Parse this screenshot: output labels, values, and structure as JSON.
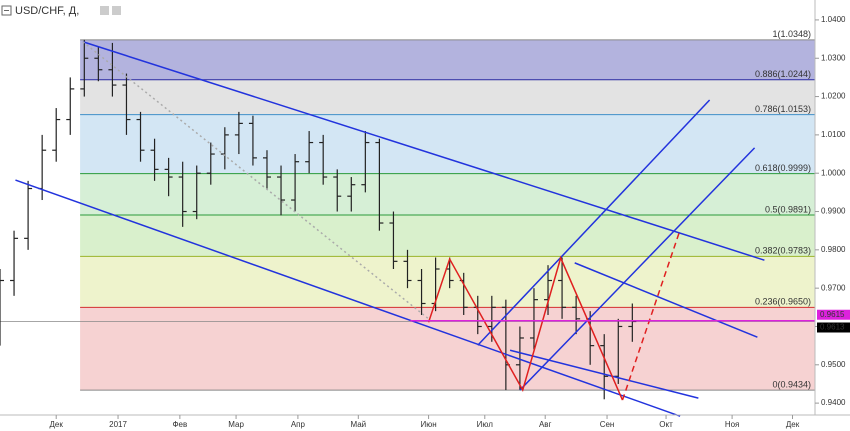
{
  "chart_data": {
    "type": "ohlc",
    "title": "USD/CHF, Д,",
    "xlim": [
      -4,
      54
    ],
    "ylim": [
      0.9369,
      1.0452
    ],
    "xticks": [
      {
        "value": 0,
        "label": "Дек"
      },
      {
        "value": 4.4,
        "label": "2017"
      },
      {
        "value": 8.8,
        "label": "Фев"
      },
      {
        "value": 12.8,
        "label": "Мар"
      },
      {
        "value": 17.2,
        "label": "Апр"
      },
      {
        "value": 21.5,
        "label": "Май"
      },
      {
        "value": 26.5,
        "label": "Июн"
      },
      {
        "value": 30.5,
        "label": "Июл"
      },
      {
        "value": 34.8,
        "label": "Авг"
      },
      {
        "value": 39.2,
        "label": "Сен"
      },
      {
        "value": 43.4,
        "label": "Окт"
      },
      {
        "value": 48.1,
        "label": "Ноя"
      },
      {
        "value": 52.4,
        "label": "Дек"
      }
    ],
    "yticks": [
      {
        "value": 1.04,
        "label": "1.0400"
      },
      {
        "value": 1.03,
        "label": "1.0300"
      },
      {
        "value": 1.02,
        "label": "1.0200"
      },
      {
        "value": 1.01,
        "label": "1.0100"
      },
      {
        "value": 1.0,
        "label": "1.0000"
      },
      {
        "value": 0.99,
        "label": "0.9900"
      },
      {
        "value": 0.98,
        "label": "0.9800"
      },
      {
        "value": 0.97,
        "label": "0.9700"
      },
      {
        "value": 0.96,
        "label": "0.9600"
      },
      {
        "value": 0.95,
        "label": "0.9500"
      },
      {
        "value": 0.94,
        "label": "0.9400"
      }
    ],
    "bars": {
      "color": "#222",
      "x": [
        -4,
        -3,
        -2,
        -1,
        0,
        1,
        2,
        3,
        4,
        5,
        6,
        7,
        8,
        9,
        10,
        11,
        12,
        13,
        14,
        15,
        16,
        17,
        18,
        19,
        20,
        21,
        22,
        23,
        24,
        25,
        26,
        27,
        28,
        29,
        30,
        31,
        32,
        33,
        34,
        35,
        36,
        37,
        38,
        39,
        40,
        41
      ],
      "open": [
        0.968,
        0.972,
        0.983,
        0.996,
        1.006,
        1.014,
        1.022,
        1.03,
        1.027,
        1.023,
        1.014,
        1.006,
        1.001,
        0.999,
        0.99,
        1.0,
        1.005,
        1.01,
        1.013,
        1.004,
        0.999,
        0.993,
        1.003,
        1.008,
        0.999,
        0.994,
        0.997,
        1.008,
        0.987,
        0.977,
        0.972,
        0.966,
        0.975,
        0.972,
        0.965,
        0.96,
        0.965,
        0.95,
        0.957,
        0.967,
        0.972,
        0.965,
        0.962,
        0.955,
        0.947,
        0.96
      ],
      "high": [
        0.975,
        0.985,
        0.998,
        1.01,
        1.017,
        1.025,
        1.0348,
        1.033,
        1.034,
        1.026,
        1.016,
        1.009,
        1.004,
        1.003,
        1.002,
        1.008,
        1.012,
        1.016,
        1.015,
        1.006,
        1.002,
        1.005,
        1.011,
        1.01,
        1.001,
        0.999,
        1.011,
        1.009,
        0.99,
        0.98,
        0.975,
        0.978,
        0.978,
        0.974,
        0.968,
        0.968,
        0.967,
        0.96,
        0.97,
        0.976,
        0.978,
        0.968,
        0.964,
        0.958,
        0.962,
        0.966
      ],
      "low": [
        0.955,
        0.968,
        0.98,
        0.993,
        1.003,
        1.01,
        1.02,
        1.024,
        1.02,
        1.01,
        1.003,
        0.998,
        0.994,
        0.986,
        0.988,
        0.997,
        1.001,
        1.005,
        1.002,
        0.996,
        0.989,
        0.99,
        1.0,
        0.997,
        0.99,
        0.99,
        0.995,
        0.985,
        0.975,
        0.97,
        0.963,
        0.964,
        0.97,
        0.963,
        0.958,
        0.956,
        0.9434,
        0.9434,
        0.954,
        0.963,
        0.962,
        0.958,
        0.95,
        0.941,
        0.945,
        0.956
      ],
      "close": [
        0.972,
        0.983,
        0.996,
        1.006,
        1.014,
        1.022,
        1.03,
        1.027,
        1.023,
        1.014,
        1.006,
        1.001,
        0.999,
        0.99,
        1.0,
        1.005,
        1.01,
        1.013,
        1.004,
        0.999,
        0.993,
        1.003,
        1.008,
        0.999,
        0.994,
        0.997,
        1.008,
        0.987,
        0.977,
        0.972,
        0.966,
        0.975,
        0.972,
        0.965,
        0.96,
        0.965,
        0.95,
        0.957,
        0.967,
        0.972,
        0.965,
        0.962,
        0.955,
        0.947,
        0.96,
        0.9613
      ]
    },
    "fib": {
      "x": [
        1.7,
        54
      ],
      "levels": [
        {
          "label": "1(1.0348)",
          "value": 1.0348,
          "color": "#888888",
          "fill": "#b3b3de"
        },
        {
          "label": "0.886(1.0244)",
          "value": 1.0244,
          "color": "#2a2aa0",
          "fill": "#e3e3e3"
        },
        {
          "label": "0.786(1.0153)",
          "value": 1.0153,
          "color": "#3f8fc9",
          "fill": "#d3e6f4"
        },
        {
          "label": "0.618(0.9999)",
          "value": 0.9999,
          "color": "#2a9a3a",
          "fill": "#d6efd6"
        },
        {
          "label": "0.5(0.9891)",
          "value": 0.9891,
          "color": "#2a9a3a",
          "fill": "#d9f0cc"
        },
        {
          "label": "0.382(0.9783)",
          "value": 0.9783,
          "color": "#9ab52a",
          "fill": "#eef3cc"
        },
        {
          "label": "0.236(0.9650)",
          "value": 0.965,
          "color": "#d33030",
          "fill": "#f6d2d2"
        },
        {
          "label": "0(0.9434)",
          "value": 0.9434,
          "color": "#888888"
        }
      ]
    },
    "lines": [
      {
        "color": "#2233dd",
        "x": [
          1.9,
          50.4
        ],
        "y": [
          1.0343,
          0.9773
        ]
      },
      {
        "color": "#2233dd",
        "x": [
          -2.9,
          44.4
        ],
        "y": [
          0.9982,
          0.9366
        ]
      },
      {
        "color": "#2233dd",
        "x": [
          30.0,
          46.5
        ],
        "y": [
          0.9551,
          1.0191
        ]
      },
      {
        "color": "#2233dd",
        "x": [
          33.0,
          49.7
        ],
        "y": [
          0.9434,
          1.0066
        ]
      },
      {
        "color": "#2233dd",
        "x": [
          36.9,
          49.9
        ],
        "y": [
          0.9766,
          0.9572
        ]
      },
      {
        "color": "#2233dd",
        "x": [
          32.3,
          45.7
        ],
        "y": [
          0.9538,
          0.9413
        ]
      },
      {
        "color": "#aaaaaa",
        "dash": "2,3",
        "x": [
          1.9,
          26.6
        ],
        "y": [
          1.0343,
          0.9617
        ]
      },
      {
        "color": "#e02020",
        "x": [
          26.5,
          28.0,
          33.2,
          35.9,
          40.3
        ],
        "y": [
          0.9611,
          0.9776,
          0.9434,
          0.9779,
          0.9408
        ]
      },
      {
        "color": "#e02020",
        "dash": "6,4",
        "x": [
          40.3,
          44.4
        ],
        "y": [
          0.9408,
          0.9852
        ]
      },
      {
        "color": "#dd22dd",
        "x": [
          25.2,
          54
        ],
        "y": [
          0.9615,
          0.9615
        ]
      }
    ],
    "price_marks": [
      {
        "label": "0.9615",
        "value": 0.9615,
        "color": "#dd22dd"
      },
      {
        "label": "0.9613",
        "value": 0.9613,
        "color": "#000000"
      }
    ]
  }
}
